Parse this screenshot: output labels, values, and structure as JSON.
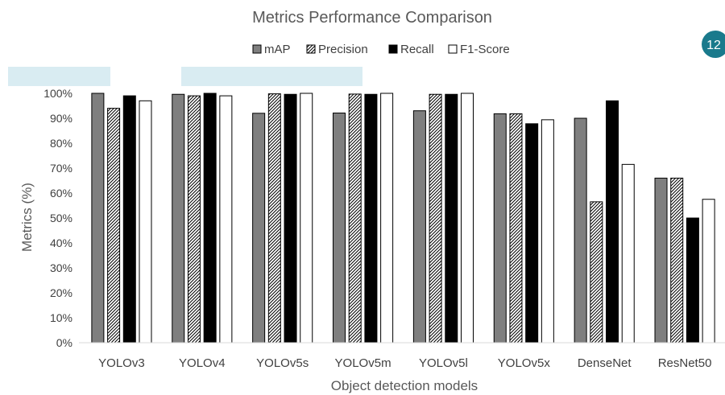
{
  "page_number": "12",
  "chart_data": {
    "type": "bar",
    "title": "Metrics Performance Comparison",
    "xlabel": "Object detection models",
    "ylabel": "Metrics (%)",
    "ylim": [
      0,
      100
    ],
    "y_ticks": [
      "0%",
      "10%",
      "20%",
      "30%",
      "40%",
      "50%",
      "60%",
      "70%",
      "80%",
      "90%",
      "100%"
    ],
    "grid": false,
    "legend_position": "top",
    "categories": [
      "YOLOv3",
      "YOLOv4",
      "YOLOv5s",
      "YOLOv5m",
      "YOLOv5l",
      "YOLOv5x",
      "DenseNet",
      "ResNet50"
    ],
    "series": [
      {
        "name": "mAP",
        "color": "#7f7f7f",
        "pattern": "solid",
        "values": [
          100,
          99.6,
          92,
          92.1,
          93,
          91.8,
          90,
          66
        ]
      },
      {
        "name": "Precision",
        "color": "#ffffff",
        "pattern": "hatch",
        "values": [
          94,
          99,
          99.8,
          99.7,
          99.6,
          91.8,
          56.5,
          66
        ]
      },
      {
        "name": "Recall",
        "color": "#000000",
        "pattern": "solid",
        "values": [
          99,
          100,
          99.6,
          99.6,
          99.6,
          87.8,
          97,
          50
        ]
      },
      {
        "name": "F1-Score",
        "color": "#ffffff",
        "pattern": "outline",
        "values": [
          97,
          99,
          100,
          100,
          100,
          89.4,
          71.5,
          57.5
        ]
      }
    ]
  }
}
